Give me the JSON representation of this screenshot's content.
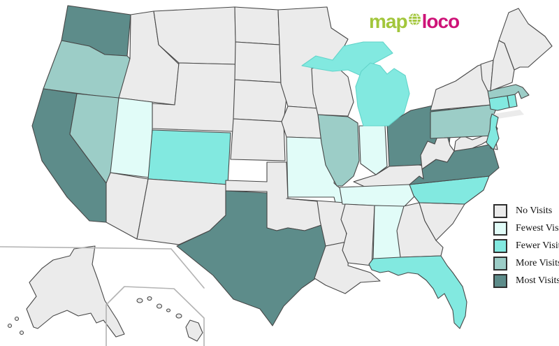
{
  "logo": {
    "part1": "map",
    "part2": "loco",
    "green": "#a2c63b",
    "pink": "#ce1378"
  },
  "legend": {
    "items": [
      {
        "id": "no",
        "label": "No Visits",
        "color": "#ebebeb"
      },
      {
        "id": "fewest",
        "label": "Fewest Visits",
        "color": "#e1fcf8"
      },
      {
        "id": "fewer",
        "label": "Fewer Visits",
        "color": "#82e9e0"
      },
      {
        "id": "more",
        "label": "More Visits",
        "color": "#9ccdc7"
      },
      {
        "id": "most",
        "label": "Most Visits",
        "color": "#5d8c8a"
      }
    ]
  },
  "map": {
    "border_color": "#474747",
    "soft_border_color": "#62d4ca",
    "inset_border_color": "#b3b3b3",
    "background_color": "#ffffff",
    "states": {
      "WA": {
        "name": "Washington",
        "level": "most"
      },
      "OR": {
        "name": "Oregon",
        "level": "more"
      },
      "CA": {
        "name": "California",
        "level": "most"
      },
      "NV": {
        "name": "Nevada",
        "level": "more"
      },
      "ID": {
        "name": "Idaho",
        "level": "no"
      },
      "MT": {
        "name": "Montana",
        "level": "no"
      },
      "WY": {
        "name": "Wyoming",
        "level": "no"
      },
      "UT": {
        "name": "Utah",
        "level": "fewest"
      },
      "CO": {
        "name": "Colorado",
        "level": "fewer"
      },
      "AZ": {
        "name": "Arizona",
        "level": "no"
      },
      "NM": {
        "name": "New Mexico",
        "level": "no"
      },
      "ND": {
        "name": "North Dakota",
        "level": "no"
      },
      "SD": {
        "name": "South Dakota",
        "level": "no"
      },
      "NE": {
        "name": "Nebraska",
        "level": "no"
      },
      "KS": {
        "name": "Kansas",
        "level": "no"
      },
      "OK": {
        "name": "Oklahoma",
        "level": "no"
      },
      "TX": {
        "name": "Texas",
        "level": "most"
      },
      "MN": {
        "name": "Minnesota",
        "level": "no"
      },
      "IA": {
        "name": "Iowa",
        "level": "no"
      },
      "MO": {
        "name": "Missouri",
        "level": "fewest"
      },
      "AR": {
        "name": "Arkansas",
        "level": "no"
      },
      "LA": {
        "name": "Louisiana",
        "level": "no"
      },
      "WI": {
        "name": "Wisconsin",
        "level": "no"
      },
      "IL": {
        "name": "Illinois",
        "level": "more"
      },
      "IN": {
        "name": "Indiana",
        "level": "fewest"
      },
      "MI": {
        "name": "Michigan",
        "level": "fewer"
      },
      "OH": {
        "name": "Ohio",
        "level": "most"
      },
      "KY": {
        "name": "Kentucky",
        "level": "no"
      },
      "TN": {
        "name": "Tennessee",
        "level": "fewest"
      },
      "MS": {
        "name": "Mississippi",
        "level": "no"
      },
      "AL": {
        "name": "Alabama",
        "level": "fewest"
      },
      "GA": {
        "name": "Georgia",
        "level": "no"
      },
      "FL": {
        "name": "Florida",
        "level": "fewer"
      },
      "SC": {
        "name": "South Carolina",
        "level": "no"
      },
      "NC": {
        "name": "North Carolina",
        "level": "fewer"
      },
      "VA": {
        "name": "Virginia",
        "level": "most"
      },
      "WV": {
        "name": "West Virginia",
        "level": "no"
      },
      "MD": {
        "name": "Maryland",
        "level": "no"
      },
      "DE": {
        "name": "Delaware",
        "level": "no"
      },
      "PA": {
        "name": "Pennsylvania",
        "level": "more"
      },
      "NJ": {
        "name": "New Jersey",
        "level": "fewer"
      },
      "NY": {
        "name": "New York",
        "level": "no"
      },
      "CT": {
        "name": "Connecticut",
        "level": "fewer"
      },
      "RI": {
        "name": "Rhode Island",
        "level": "fewer"
      },
      "MA": {
        "name": "Massachusetts",
        "level": "more"
      },
      "VT": {
        "name": "Vermont",
        "level": "no"
      },
      "NH": {
        "name": "New Hampshire",
        "level": "no"
      },
      "ME": {
        "name": "Maine",
        "level": "no"
      },
      "AK": {
        "name": "Alaska",
        "level": "no"
      },
      "HI": {
        "name": "Hawaii",
        "level": "no"
      }
    }
  }
}
